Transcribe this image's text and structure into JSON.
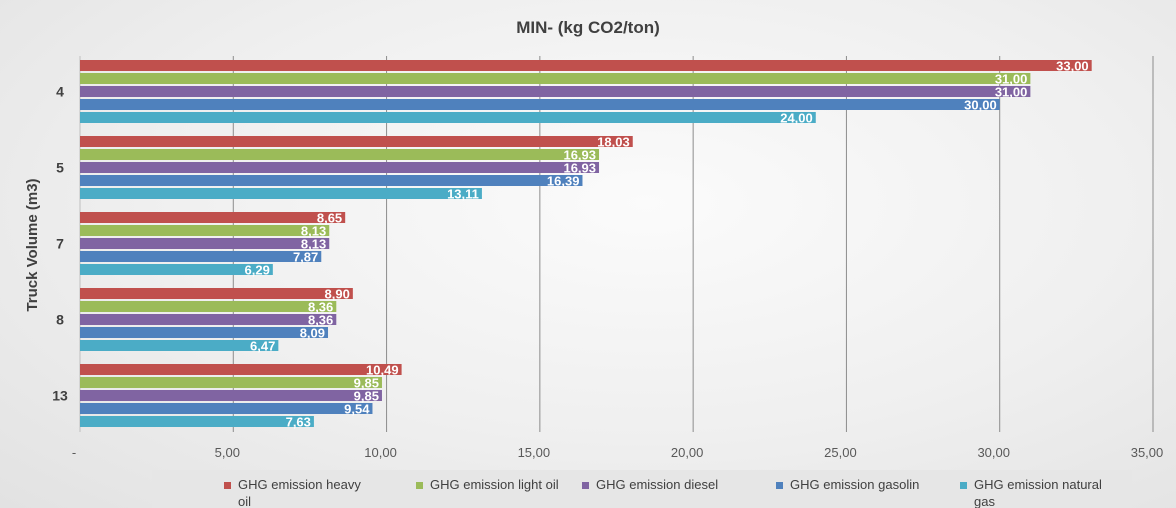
{
  "chart_data": {
    "type": "bar",
    "orientation": "horizontal",
    "title": "MIN- (kg CO2/ton)",
    "ylabel": "Truck Volume (m3)",
    "xlabel": "",
    "categories": [
      "4",
      "5",
      "7",
      "8",
      "13"
    ],
    "xlim": [
      0,
      35
    ],
    "xticks": [
      0,
      5,
      10,
      15,
      20,
      25,
      30,
      35
    ],
    "xtick_labels": [
      "-",
      "5,00",
      "10,00",
      "15,00",
      "20,00",
      "25,00",
      "30,00",
      "35,00"
    ],
    "grid": "vertical",
    "legend_position": "bottom",
    "series": [
      {
        "name": "GHG emission heavy oil",
        "color": "#c0504d",
        "values": [
          33.0,
          18.03,
          8.65,
          8.9,
          10.49
        ],
        "labels": [
          "33,00",
          "18,03",
          "8,65",
          "8,90",
          "10,49"
        ]
      },
      {
        "name": "GHG emission light oil",
        "color": "#9bbb59",
        "values": [
          31.0,
          16.93,
          8.13,
          8.36,
          9.85
        ],
        "labels": [
          "31,00",
          "16,93",
          "8,13",
          "8,36",
          "9,85"
        ]
      },
      {
        "name": "GHG  emission diesel",
        "color": "#8064a2",
        "values": [
          31.0,
          16.93,
          8.13,
          8.36,
          9.85
        ],
        "labels": [
          "31,00",
          "16,93",
          "8,13",
          "8,36",
          "9,85"
        ]
      },
      {
        "name": "GHG emission gasolin",
        "color": "#4f81bd",
        "values": [
          30.0,
          16.39,
          7.87,
          8.09,
          9.54
        ],
        "labels": [
          "30,00",
          "16,39",
          "7,87",
          "8,09",
          "9,54"
        ]
      },
      {
        "name": "GHG emission natural gas",
        "color": "#4bacc6",
        "values": [
          24.0,
          13.11,
          6.29,
          6.47,
          7.63
        ],
        "labels": [
          "24,00",
          "13,11",
          "6,29",
          "6,47",
          "7,63"
        ]
      }
    ]
  }
}
